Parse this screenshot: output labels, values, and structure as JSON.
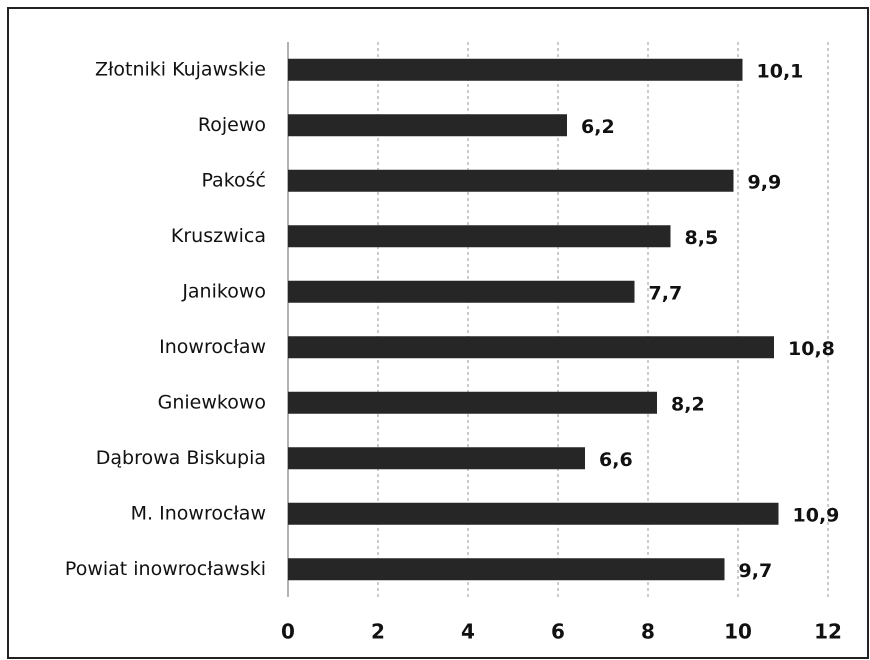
{
  "chart_data": {
    "type": "bar",
    "orientation": "horizontal",
    "categories": [
      "Złotniki Kujawskie",
      "Rojewo",
      "Pakość",
      "Kruszwica",
      "Janikowo",
      "Inowrocław",
      "Gniewkowo",
      "Dąbrowa Biskupia",
      "M. Inowrocław",
      "Powiat inowrocławski"
    ],
    "values": [
      10.1,
      6.2,
      9.9,
      8.5,
      7.7,
      10.8,
      8.2,
      6.6,
      10.9,
      9.7
    ],
    "value_labels": [
      "10,1",
      "6,2",
      "9,9",
      "8,5",
      "7,7",
      "10,8",
      "8,2",
      "6,6",
      "10,9",
      "9,7"
    ],
    "color": "#262626",
    "xlim": [
      0,
      12
    ],
    "xticks": [
      0,
      2,
      4,
      6,
      8,
      10,
      12
    ],
    "grid": true
  }
}
